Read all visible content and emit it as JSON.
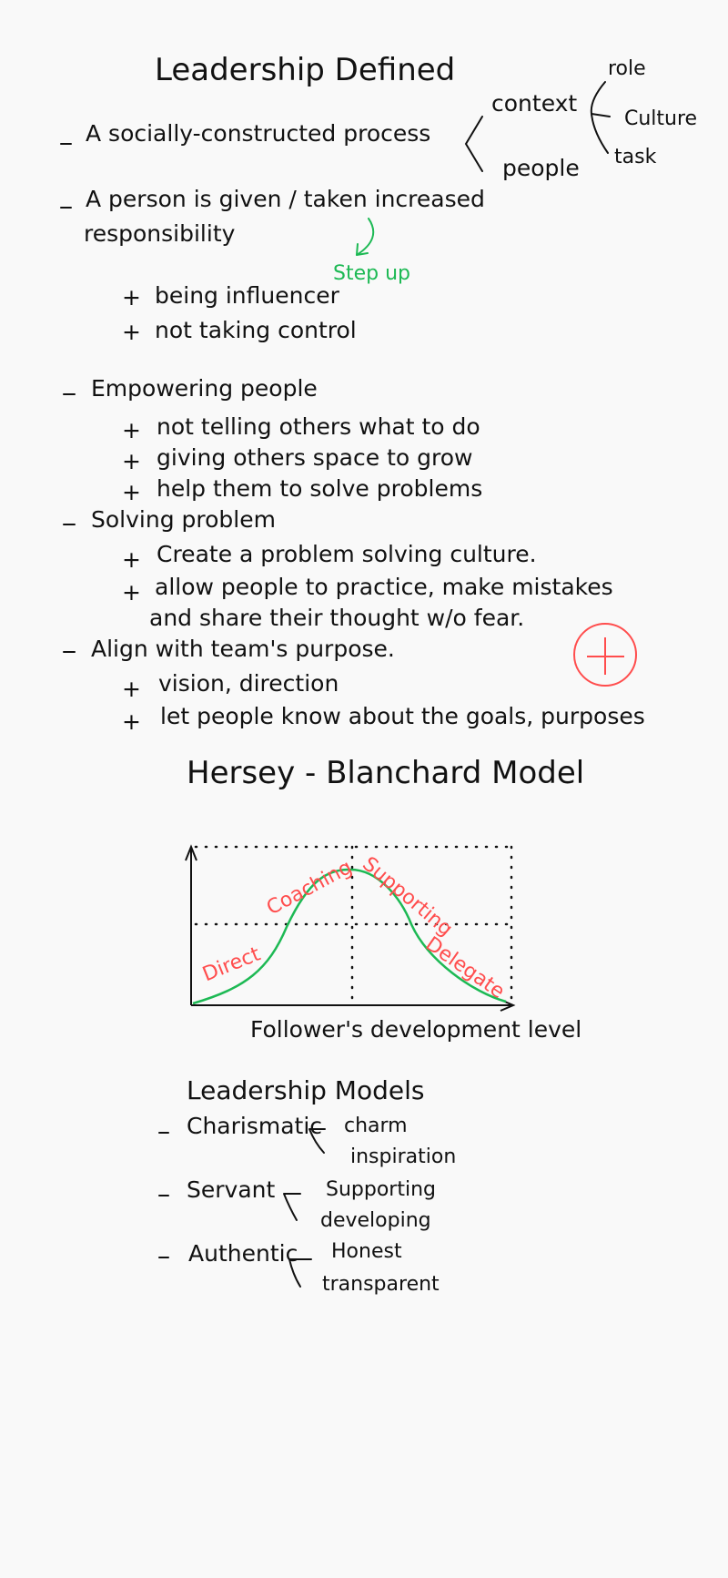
{
  "colors": {
    "ink": "#111111",
    "green": "#1db954",
    "red": "#ff4d4d",
    "background": "#f9f9f9"
  },
  "sections": {
    "leadership_defined": {
      "title": "Leadership Defined",
      "point1": "A socially-constructed process",
      "branch1": {
        "context": "context",
        "people": "people"
      },
      "branch2": {
        "role": "role",
        "culture": "Culture",
        "task": "task"
      },
      "point2_line1": "A person is given / taken increased",
      "point2_line2": "responsibility",
      "step_up": "Step up",
      "sub1": "being influencer",
      "sub2": "not taking control",
      "point3": "Empowering people",
      "sub3": "not telling others what to do",
      "sub4": "giving others space to grow",
      "sub5": "help them to solve problems",
      "point4": "Solving problem",
      "sub6": "Create a problem solving culture.",
      "sub7_line1": "allow people to practice, make mistakes",
      "sub7_line2": "and share their thought w/o fear.",
      "point5": "Align with team's purpose.",
      "sub8": "vision, direction",
      "sub9": "let people know about the goals, purposes"
    },
    "hersey_blanchard": {
      "title": "Hersey - Blanchard Model",
      "x_label": "Follower's development level",
      "curve_labels": {
        "direct": "Direct",
        "coaching": "Coaching",
        "supporting": "Supporting",
        "delegate": "Delegate"
      }
    },
    "leadership_models": {
      "title": "Leadership Models",
      "items": [
        {
          "name": "Charismatic",
          "traits": [
            "charm",
            "inspiration"
          ]
        },
        {
          "name": "Servant",
          "traits": [
            "Supporting",
            "developing"
          ]
        },
        {
          "name": "Authentic",
          "traits": [
            "Honest",
            "transparent"
          ]
        }
      ]
    }
  }
}
